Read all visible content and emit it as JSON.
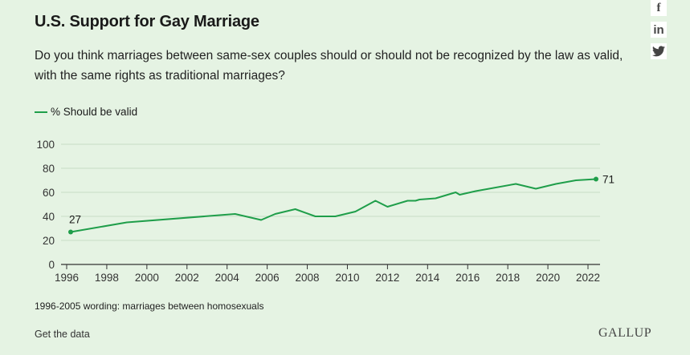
{
  "header": {
    "title": "U.S. Support for Gay Marriage",
    "subtitle": "Do you think marriages between same-sex couples should or should not be recognized by the law as valid, with the same rights as traditional marriages?"
  },
  "share": {
    "facebook_glyph": "f",
    "linkedin_glyph": "in",
    "icons": [
      "facebook-icon",
      "linkedin-icon",
      "twitter-icon"
    ]
  },
  "colors": {
    "background": "#e5f3e3",
    "line": "#1f9e4a",
    "grid": "#c8dcc6",
    "axis": "#333333"
  },
  "chart_data": {
    "type": "line",
    "title": "",
    "xlabel": "",
    "ylabel": "",
    "xlim": [
      1996,
      2022.6
    ],
    "ylim": [
      0,
      100
    ],
    "yticks": [
      "0",
      "20",
      "40",
      "60",
      "80",
      "100"
    ],
    "xticks": [
      "1996",
      "1998",
      "2000",
      "2002",
      "2004",
      "2006",
      "2008",
      "2010",
      "2012",
      "2014",
      "2016",
      "2018",
      "2020",
      "2022"
    ],
    "grid": true,
    "legend_position": "top-left",
    "series": [
      {
        "name": "% Should be valid",
        "x": [
          1996.2,
          1999.0,
          2004.4,
          2005.7,
          2006.4,
          2007.4,
          2008.4,
          2009.4,
          2010.4,
          2011.4,
          2012.0,
          2013.0,
          2013.4,
          2013.6,
          2014.4,
          2015.4,
          2015.6,
          2016.4,
          2018.4,
          2019.4,
          2020.4,
          2021.4,
          2022.4
        ],
        "values": [
          27,
          35,
          42,
          37,
          42,
          46,
          40,
          40,
          44,
          53,
          48,
          53,
          53,
          54,
          55,
          60,
          58,
          61,
          67,
          63,
          67,
          70,
          71
        ],
        "labels": [
          {
            "year": 1996.2,
            "value": 27,
            "text": "27"
          },
          {
            "year": 2022.4,
            "value": 71,
            "text": "71"
          }
        ]
      }
    ]
  },
  "footer": {
    "note": "1996-2005 wording: marriages between homosexuals",
    "get_data_label": "Get the data",
    "brand": "GALLUP"
  }
}
